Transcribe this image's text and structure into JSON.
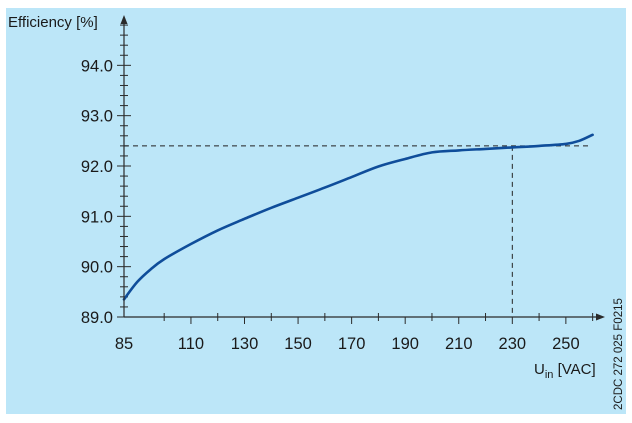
{
  "chart_data": {
    "type": "line",
    "ylabel": "Efficiency [%]",
    "xlabel_main": "U",
    "xlabel_sub": "in",
    "xlabel_unit": " [VAC]",
    "xlim": [
      85,
      262
    ],
    "ylim": [
      89.0,
      95.0
    ],
    "x_ticks": [
      85,
      110,
      130,
      150,
      170,
      190,
      210,
      230,
      250
    ],
    "y_ticks": [
      89.0,
      90.0,
      91.0,
      92.0,
      93.0,
      94.0
    ],
    "y_tick_labels": [
      "89.0",
      "90.0",
      "91.0",
      "92.0",
      "93.0",
      "94.0"
    ],
    "reference": {
      "x": 230,
      "y": 92.4,
      "style": "dashed"
    },
    "grid": false,
    "series": [
      {
        "x": [
          85,
          90,
          95,
          100,
          110,
          120,
          130,
          140,
          150,
          160,
          170,
          180,
          190,
          200,
          210,
          220,
          230,
          240,
          250,
          255,
          260
        ],
        "y": [
          89.35,
          89.7,
          89.95,
          90.15,
          90.45,
          90.72,
          90.95,
          91.17,
          91.37,
          91.57,
          91.78,
          91.99,
          92.14,
          92.27,
          92.31,
          92.34,
          92.37,
          92.4,
          92.44,
          92.5,
          92.62
        ],
        "color": "#0f4d9a"
      }
    ]
  },
  "code": "2CDC 272 025 F0215",
  "colors": {
    "background": "#bce6f8",
    "curve": "#0f4d9a",
    "axis": "#2a2a2a"
  }
}
